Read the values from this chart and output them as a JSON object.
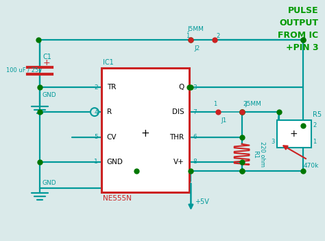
{
  "bg_color": "#daeaea",
  "teal": "#009999",
  "red": "#cc2222",
  "green": "#009900",
  "title": "PULSE\nOUTPUT\nFROM IC\n+PIN 3",
  "ic_pins_left": [
    "TR",
    "R",
    "CV",
    "GND"
  ],
  "ic_pins_right": [
    "Q",
    "DIS",
    "THR",
    "V+"
  ],
  "ic_nums_left": [
    "2",
    "4",
    "5",
    "1"
  ],
  "ic_nums_right": [
    "3",
    "7",
    "6",
    "8"
  ],
  "ic_label": "NE555N",
  "ic_title": "IC1"
}
